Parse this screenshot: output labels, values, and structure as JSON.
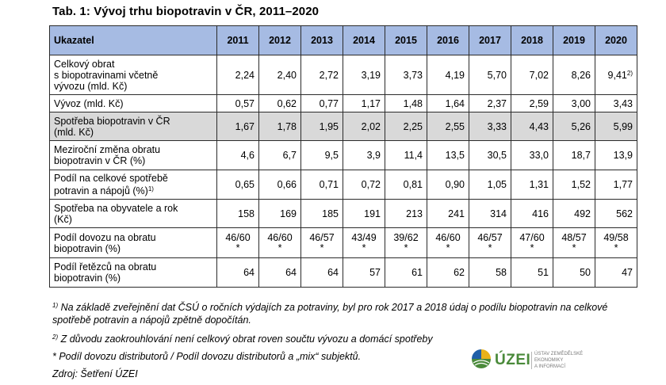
{
  "title": "Tab. 1: Vývoj trhu biopotravin v ČR, 2011–2020",
  "table": {
    "header": [
      "Ukazatel",
      "2011",
      "2012",
      "2013",
      "2014",
      "2015",
      "2016",
      "2017",
      "2018",
      "2019",
      "2020"
    ],
    "rows": [
      {
        "label_lines": [
          "Celkový obrat",
          "s biopotravinami včetně",
          "vývozu (mld. Kč)"
        ],
        "values": [
          "2,24",
          "2,40",
          "2,72",
          "3,19",
          "3,73",
          "4,19",
          "5,70",
          "7,02",
          "8,26",
          "9,41"
        ],
        "note_2020": "2)"
      },
      {
        "label_lines": [
          "Vývoz (mld. Kč)"
        ],
        "values": [
          "0,57",
          "0,62",
          "0,77",
          "1,17",
          "1,48",
          "1,64",
          "2,37",
          "2,59",
          "3,00",
          "3,43"
        ]
      },
      {
        "label_lines": [
          "Spotřeba biopotravin v ČR",
          "(mld. Kč)"
        ],
        "values": [
          "1,67",
          "1,78",
          "1,95",
          "2,02",
          "2,25",
          "2,55",
          "3,33",
          "4,43",
          "5,26",
          "5,99"
        ]
      },
      {
        "label_lines": [
          "Meziroční změna obratu",
          "biopotravin v ČR (%)"
        ],
        "values": [
          "4,6",
          "6,7",
          "9,5",
          "3,9",
          "11,4",
          "13,5",
          "30,5",
          "33,0",
          "18,7",
          "13,9"
        ]
      },
      {
        "label_lines": [
          "Podíl na celkové spotřebě",
          "potravin a nápojů (%)"
        ],
        "label_note": "1)",
        "values": [
          "0,65",
          "0,66",
          "0,71",
          "0,72",
          "0,81",
          "0,90",
          "1,05",
          "1,31",
          "1,52",
          "1,77"
        ]
      },
      {
        "label_lines": [
          "Spotřeba na obyvatele a rok",
          "(Kč)"
        ],
        "values": [
          "158",
          "169",
          "185",
          "191",
          "213",
          "241",
          "314",
          "416",
          "492",
          "562"
        ]
      },
      {
        "label_lines": [
          "Podíl dovozu na obratu",
          "biopotravin (%)"
        ],
        "values": [
          "46/60",
          "46/60",
          "46/57",
          "43/49",
          "39/62",
          "46/60",
          "46/57",
          "47/60",
          "48/57",
          "49/58"
        ],
        "marker": "*"
      },
      {
        "label_lines": [
          "Podíl řetězců na obratu",
          "biopotravin (%)"
        ],
        "values": [
          "64",
          "64",
          "64",
          "57",
          "61",
          "62",
          "58",
          "51",
          "50",
          "47"
        ]
      }
    ]
  },
  "notes": {
    "n1_mark": "1)",
    "n1": "Na základě zveřejnění dat ČSÚ o ročních výdajích za potraviny, byl pro rok 2017 a 2018 údaj o podílu biopotravin na celkové spotřebě potravin a nápojů zpětně dopočítán.",
    "n2_mark": "2)",
    "n2": "Z důvodu zaokrouhlování není celkový obrat roven součtu vývozu a domácí spotřeby",
    "n3": "* Podíl dovozu distributorů / Podíl dovozu distributorů a „mix“ subjektů.",
    "source": "Zdroj: Šetření ÚZEI"
  },
  "logo": {
    "name": "ÚZEI",
    "subtitle_line1": "Ústav zemědělské ekonomiky",
    "subtitle_line2": "a informací",
    "colors": {
      "green": "#4a8a3a",
      "blue": "#1f5fa8",
      "yellow": "#e8b21a"
    }
  },
  "colors": {
    "header_bg": "#a6bbe3",
    "shaded_row_bg": "#d9d9d9"
  }
}
